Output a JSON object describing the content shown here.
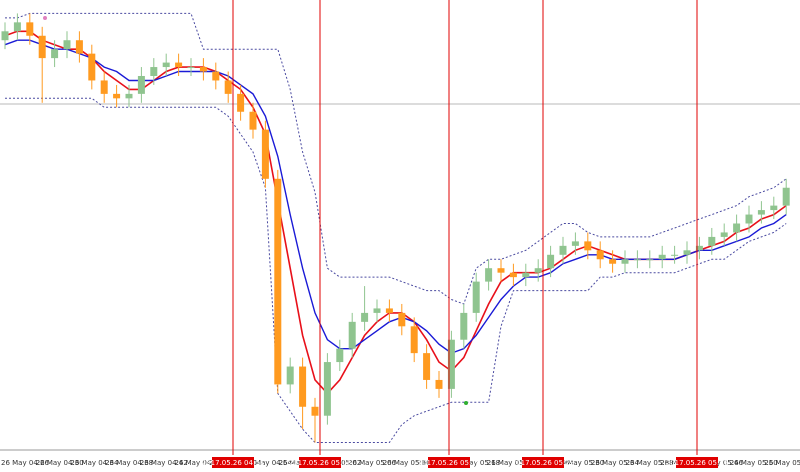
{
  "chart_data": {
    "type": "candlestick",
    "ylim": [
      0,
      100
    ],
    "open": [
      91,
      93,
      95,
      92,
      87,
      89,
      91,
      88,
      82,
      79,
      78,
      79,
      83,
      85,
      86,
      85,
      85,
      84,
      82,
      79,
      75,
      71,
      60,
      14,
      18,
      9,
      7,
      19,
      22,
      28,
      30,
      31,
      30,
      27,
      21,
      15,
      13,
      24,
      30,
      37,
      40,
      39,
      38,
      39,
      40,
      43,
      45,
      46,
      44,
      42,
      41,
      42,
      42,
      42,
      43,
      43,
      44,
      45,
      47,
      48,
      50,
      52,
      53,
      54
    ],
    "high": [
      95,
      97,
      97,
      94,
      91,
      93,
      93,
      90,
      84,
      81,
      81,
      85,
      87,
      88,
      88,
      87,
      87,
      86,
      84,
      81,
      77,
      73,
      62,
      20,
      20,
      11,
      21,
      24,
      30,
      36,
      33,
      33,
      32,
      29,
      23,
      17,
      26,
      32,
      39,
      42,
      42,
      41,
      41,
      42,
      45,
      47,
      48,
      48,
      46,
      44,
      44,
      44,
      44,
      45,
      45,
      46,
      47,
      49,
      50,
      52,
      54,
      55,
      56,
      60
    ],
    "low": [
      89,
      91,
      90,
      77,
      85,
      87,
      86,
      80,
      77,
      76,
      76,
      77,
      81,
      83,
      83,
      83,
      82,
      80,
      77,
      73,
      69,
      58,
      12,
      12,
      4,
      1,
      5,
      17,
      20,
      26,
      28,
      28,
      25,
      19,
      13,
      11,
      11,
      22,
      28,
      35,
      37,
      36,
      36,
      37,
      38,
      41,
      43,
      42,
      40,
      39,
      39,
      40,
      40,
      40,
      41,
      41,
      42,
      43,
      45,
      46,
      48,
      50,
      51,
      52
    ],
    "close": [
      93,
      95,
      92,
      87,
      89,
      91,
      88,
      82,
      79,
      78,
      79,
      83,
      85,
      86,
      85,
      85,
      84,
      82,
      79,
      75,
      71,
      60,
      14,
      18,
      9,
      7,
      19,
      22,
      28,
      30,
      31,
      30,
      27,
      21,
      15,
      13,
      24,
      30,
      37,
      40,
      39,
      38,
      39,
      40,
      43,
      45,
      46,
      44,
      42,
      41,
      42,
      42,
      42,
      43,
      43,
      44,
      45,
      47,
      48,
      50,
      52,
      53,
      54,
      58
    ],
    "up_color": "#8fc48f",
    "down_color": "#ff9a1f",
    "lines": [
      {
        "color": "#e8101a",
        "width": 1.6,
        "dash": false,
        "values": [
          92,
          93,
          93,
          91,
          90,
          89,
          89,
          87,
          84,
          82,
          80,
          80,
          82,
          84,
          85,
          85,
          85,
          84,
          82,
          80,
          76,
          70,
          55,
          40,
          25,
          15,
          12,
          15,
          20,
          25,
          28,
          30,
          30,
          28,
          24,
          19,
          17,
          20,
          26,
          32,
          37,
          39,
          39,
          39,
          40,
          42,
          44,
          45,
          44,
          43,
          42,
          42,
          42,
          42,
          42,
          43,
          44,
          45,
          46,
          48,
          49,
          51,
          52,
          54
        ]
      },
      {
        "color": "#1a1ad6",
        "width": 1.4,
        "dash": false,
        "values": [
          90,
          91,
          91,
          90,
          89,
          89,
          88,
          87,
          85,
          84,
          82,
          82,
          82,
          83,
          84,
          84,
          84,
          84,
          83,
          81,
          79,
          74,
          65,
          52,
          40,
          30,
          24,
          22,
          22,
          24,
          26,
          28,
          29,
          28,
          26,
          23,
          21,
          22,
          25,
          29,
          33,
          36,
          38,
          38,
          39,
          41,
          42,
          43,
          43,
          42,
          42,
          42,
          42,
          42,
          42,
          43,
          44,
          44,
          45,
          46,
          47,
          49,
          50,
          52
        ]
      },
      {
        "color": "#4a4aa0",
        "width": 1,
        "dash": true,
        "values": [
          96,
          96,
          97,
          97,
          97,
          97,
          97,
          97,
          97,
          97,
          97,
          97,
          97,
          97,
          97,
          97,
          89,
          89,
          89,
          89,
          89,
          89,
          89,
          80,
          66,
          57,
          40,
          38,
          38,
          38,
          38,
          38,
          37,
          36,
          35,
          35,
          33,
          32,
          40,
          42,
          42,
          43,
          44,
          46,
          48,
          50,
          50,
          48,
          47,
          47,
          47,
          47,
          47,
          48,
          49,
          50,
          51,
          52,
          53,
          54,
          56,
          57,
          58,
          60
        ]
      },
      {
        "color": "#4a4aa0",
        "width": 1,
        "dash": true,
        "values": [
          78,
          78,
          78,
          78,
          78,
          78,
          78,
          78,
          76,
          76,
          76,
          76,
          76,
          76,
          76,
          76,
          76,
          76,
          74,
          70,
          66,
          58,
          12,
          8,
          4,
          1,
          1,
          1,
          1,
          1,
          1,
          1,
          5,
          7,
          8,
          9,
          10,
          10,
          10,
          10,
          27,
          35,
          35,
          35,
          35,
          35,
          35,
          35,
          38,
          38,
          39,
          39,
          39,
          39,
          39,
          40,
          41,
          42,
          42,
          44,
          46,
          47,
          48,
          50
        ]
      }
    ],
    "time_labels": [
      "26 May 04:26",
      "26 May 04:30",
      "26 May 04:34",
      "26 May 04:38",
      "26 May 04:42",
      "26 May 04:46",
      "26 May 04:50",
      "26 May 04:54",
      "26 May 04:58",
      "26 May 05:02",
      "26 May 05:06",
      "26 May 05:10",
      "26 May 05:14",
      "26 May 05:18",
      "26 May 05:22",
      "26 May 05:26",
      "26 May 05:30",
      "26 May 05:34",
      "26 May 05:38",
      "26 May 05:42",
      "26 May 05:46",
      "26 May 05:50",
      "26 May 05:54"
    ],
    "markers": [
      "2017.05.26 04:51",
      "2017.05.26 05:03",
      "2017.05.26 05:18",
      "2017.05.26 05:29",
      "2017.05.26 05:47"
    ]
  }
}
